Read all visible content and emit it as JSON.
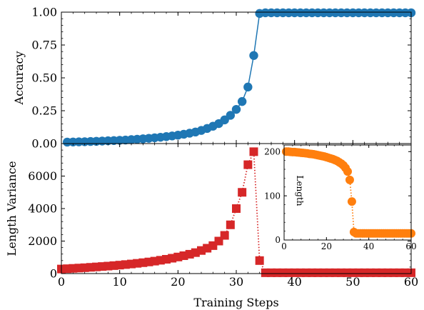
{
  "chart_data": [
    {
      "type": "line",
      "panel": "top",
      "ylabel": "Accuracy",
      "xlim": [
        0,
        60
      ],
      "ylim": [
        0,
        1
      ],
      "yticks": [
        0.0,
        0.25,
        0.5,
        0.75,
        1.0
      ],
      "ytick_labels": [
        "0.00",
        "0.25",
        "0.50",
        "0.75",
        "1.00"
      ],
      "series": [
        {
          "color": "#1f77b4",
          "marker": "circle",
          "linestyle": "solid",
          "x": [
            1,
            2,
            3,
            4,
            5,
            6,
            7,
            8,
            9,
            10,
            11,
            12,
            13,
            14,
            15,
            16,
            17,
            18,
            19,
            20,
            21,
            22,
            23,
            24,
            25,
            26,
            27,
            28,
            29,
            30,
            31,
            32,
            33,
            34,
            35,
            36,
            37,
            38,
            39,
            40,
            41,
            42,
            43,
            44,
            45,
            46,
            47,
            48,
            49,
            50,
            51,
            52,
            53,
            54,
            55,
            56,
            57,
            58,
            59,
            60
          ],
          "y": [
            0.011,
            0.012,
            0.013,
            0.014,
            0.016,
            0.017,
            0.019,
            0.021,
            0.023,
            0.025,
            0.027,
            0.03,
            0.033,
            0.036,
            0.04,
            0.044,
            0.048,
            0.053,
            0.058,
            0.064,
            0.071,
            0.079,
            0.088,
            0.1,
            0.115,
            0.132,
            0.152,
            0.18,
            0.215,
            0.26,
            0.32,
            0.43,
            0.67,
            0.99,
            0.995,
            0.995,
            0.995,
            0.995,
            0.995,
            0.995,
            0.995,
            0.995,
            0.995,
            0.995,
            0.995,
            0.995,
            0.995,
            0.995,
            0.995,
            0.995,
            0.995,
            0.995,
            0.995,
            0.995,
            0.995,
            0.995,
            0.995,
            0.995,
            0.995,
            0.995
          ]
        }
      ]
    },
    {
      "type": "line",
      "panel": "bottom",
      "xlabel": "Training Steps",
      "ylabel": "Length Variance",
      "xlim": [
        0,
        60
      ],
      "ylim": [
        0,
        8000
      ],
      "xticks": [
        0,
        10,
        20,
        30,
        40,
        50,
        60
      ],
      "xtick_labels": [
        "0",
        "10",
        "20",
        "30",
        "40",
        "50",
        "60"
      ],
      "yticks": [
        0,
        2000,
        4000,
        6000
      ],
      "ytick_labels": [
        "0",
        "2000",
        "4000",
        "6000"
      ],
      "series": [
        {
          "color": "#d62728",
          "marker": "square",
          "linestyle": "dotted",
          "x": [
            0,
            1,
            2,
            3,
            4,
            5,
            6,
            7,
            8,
            9,
            10,
            11,
            12,
            13,
            14,
            15,
            16,
            17,
            18,
            19,
            20,
            21,
            22,
            23,
            24,
            25,
            26,
            27,
            28,
            29,
            30,
            31,
            32,
            33,
            34,
            35,
            36,
            37,
            38,
            39,
            40,
            41,
            42,
            43,
            44,
            45,
            46,
            47,
            48,
            49,
            50,
            51,
            52,
            53,
            54,
            55,
            56,
            57,
            58,
            59,
            60
          ],
          "y": [
            280,
            300,
            320,
            340,
            360,
            385,
            410,
            435,
            460,
            490,
            520,
            555,
            590,
            630,
            670,
            715,
            765,
            820,
            880,
            945,
            1020,
            1100,
            1190,
            1290,
            1420,
            1560,
            1720,
            2000,
            2350,
            3000,
            4000,
            5000,
            6700,
            7500,
            800,
            50,
            50,
            50,
            50,
            50,
            50,
            50,
            50,
            50,
            50,
            50,
            50,
            50,
            50,
            50,
            50,
            50,
            50,
            50,
            50,
            50,
            50,
            50,
            50,
            50,
            50
          ]
        }
      ]
    },
    {
      "type": "line",
      "panel": "inset",
      "ylabel": "Length",
      "xlim": [
        0,
        60
      ],
      "ylim": [
        0,
        215
      ],
      "xticks": [
        0,
        20,
        40,
        60
      ],
      "xtick_labels": [
        "0",
        "20",
        "40",
        "60"
      ],
      "yticks": [
        0,
        100,
        200
      ],
      "ytick_labels": [
        "0",
        "100",
        "200"
      ],
      "series": [
        {
          "color": "#ff7f0e",
          "marker": "circle",
          "linestyle": "dotted",
          "x": [
            1,
            2,
            3,
            4,
            5,
            6,
            7,
            8,
            9,
            10,
            11,
            12,
            13,
            14,
            15,
            16,
            17,
            18,
            19,
            20,
            21,
            22,
            23,
            24,
            25,
            26,
            27,
            28,
            29,
            30,
            31,
            32,
            33,
            34,
            35,
            36,
            37,
            38,
            39,
            40,
            41,
            42,
            43,
            44,
            45,
            46,
            47,
            48,
            49,
            50,
            51,
            52,
            53,
            54,
            55,
            56,
            57,
            58,
            59,
            60
          ],
          "y": [
            200,
            200,
            199.5,
            199,
            199,
            198.5,
            198,
            197.5,
            197,
            196.5,
            196,
            195,
            194.5,
            194,
            193,
            192,
            191,
            190,
            189,
            187.5,
            186,
            184.5,
            183,
            181,
            179,
            176,
            173,
            169,
            163,
            155,
            136,
            87,
            18,
            15,
            15,
            15,
            15,
            15,
            15,
            15,
            15,
            15,
            15,
            15,
            15,
            15,
            15,
            15,
            15,
            15,
            15,
            15,
            15,
            15,
            15,
            15,
            15,
            15,
            15,
            15
          ]
        }
      ]
    }
  ]
}
